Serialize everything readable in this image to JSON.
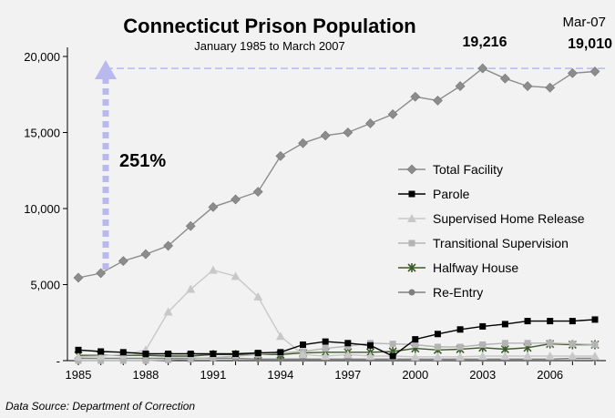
{
  "chart_data": {
    "type": "line",
    "title": "Connecticut Prison Population",
    "subtitle": "January 1985 to March 2007",
    "xlabel": "",
    "ylabel": "",
    "ylim": [
      0,
      20000
    ],
    "y_ticks": [
      "-",
      "5,000",
      "10,000",
      "15,000",
      "20,000"
    ],
    "x_tick_labels": [
      "1985",
      "1988",
      "1991",
      "1994",
      "1997",
      "2000",
      "2003",
      "2006"
    ],
    "x": [
      1985,
      1986,
      1987,
      1988,
      1989,
      1990,
      1991,
      1992,
      1993,
      1994,
      1995,
      1996,
      1997,
      1998,
      1999,
      2000,
      2001,
      2002,
      2003,
      2004,
      2005,
      2006,
      2007,
      2008
    ],
    "grid": false,
    "legend_position": "right",
    "series": [
      {
        "name": "Total Facility",
        "color": "#8c8c8c",
        "marker": "diamond",
        "values": [
          5450,
          5750,
          6550,
          7000,
          7550,
          8850,
          10100,
          10600,
          11100,
          13450,
          14300,
          14800,
          15000,
          15600,
          16200,
          17350,
          17100,
          18050,
          19216,
          18550,
          18050,
          17950,
          18900,
          19010
        ]
      },
      {
        "name": "Parole",
        "color": "#000000",
        "marker": "square",
        "values": [
          700,
          600,
          550,
          450,
          450,
          450,
          450,
          450,
          500,
          550,
          1050,
          1250,
          1150,
          1000,
          300,
          1400,
          1750,
          2050,
          2250,
          2400,
          2600,
          2600,
          2600,
          2700
        ]
      },
      {
        "name": "Supervised Home Release",
        "color": "#c8c8c8",
        "marker": "triangle",
        "values": [
          250,
          300,
          400,
          700,
          3200,
          4700,
          5950,
          5550,
          4200,
          1600,
          400,
          300,
          400,
          300,
          300,
          250,
          250,
          250,
          300,
          300,
          300,
          300,
          300,
          300
        ]
      },
      {
        "name": "Transitional Supervision",
        "color": "#b4b4b4",
        "marker": "square",
        "values": [
          0,
          0,
          0,
          0,
          50,
          100,
          200,
          300,
          400,
          500,
          600,
          800,
          950,
          1150,
          1100,
          1050,
          900,
          900,
          1050,
          1150,
          1150,
          1150,
          1100,
          1050
        ]
      },
      {
        "name": "Halfway House",
        "color": "#3c5a28",
        "marker": "star",
        "values": [
          350,
          350,
          350,
          350,
          300,
          300,
          400,
          400,
          400,
          400,
          500,
          550,
          550,
          550,
          600,
          800,
          700,
          750,
          850,
          750,
          850,
          1100,
          1050,
          1050
        ]
      },
      {
        "name": "Re-Entry",
        "color": "#7f7f7f",
        "marker": "circle",
        "values": [
          150,
          150,
          150,
          150,
          150,
          150,
          150,
          150,
          100,
          100,
          100,
          100,
          100,
          100,
          100,
          100,
          100,
          100,
          100,
          100,
          100,
          100,
          150,
          150
        ]
      }
    ],
    "annotations": {
      "growth_label": "251%",
      "peak_label": "19,216",
      "end_date_label": "Mar-07",
      "end_value_label": "19,010"
    }
  },
  "source": "Data Source: Department of Correction"
}
